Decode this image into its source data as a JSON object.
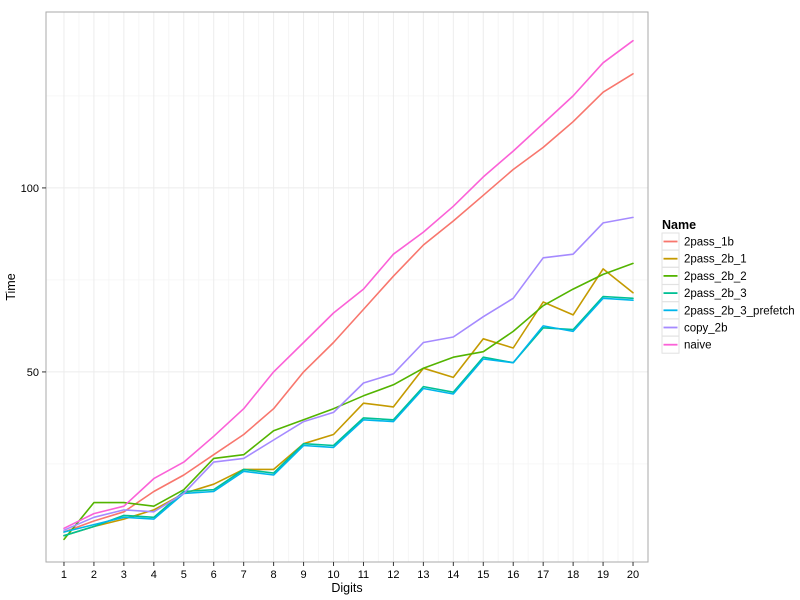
{
  "figure": {
    "background": "#ffffff",
    "panel_fill": "#ffffff",
    "panel_border": "#aaaaaa",
    "grid_major_color": "#ececec",
    "grid_minor_color": "#f6f6f6",
    "tick_color": "#333333",
    "text_color": "#000000",
    "legend_key_fill": "#ffffff",
    "legend_key_border": "#e2e2e2"
  },
  "chart_data": {
    "type": "line",
    "title": "",
    "xlabel": "Digits",
    "ylabel": "Time",
    "legend_title": "Name",
    "legend_position": "right",
    "grid": true,
    "xlim": [
      0.4,
      20.5
    ],
    "ylim": [
      -1.65,
      147.8
    ],
    "xticks": [
      1,
      2,
      3,
      4,
      5,
      6,
      7,
      8,
      9,
      10,
      11,
      12,
      13,
      14,
      15,
      16,
      17,
      18,
      19,
      20
    ],
    "yticks": [
      50,
      100
    ],
    "yticks_minor": [
      25,
      75,
      125
    ],
    "x": [
      1,
      2,
      3,
      4,
      5,
      6,
      7,
      8,
      9,
      10,
      11,
      12,
      13,
      14,
      15,
      16,
      17,
      18,
      19,
      20
    ],
    "series": [
      {
        "name": "2pass_1b",
        "color": "#F8766D",
        "values": [
          6.5,
          9.5,
          12,
          17.5,
          22,
          27.5,
          33,
          40,
          50,
          58,
          67,
          76,
          84.5,
          91,
          98,
          105,
          111,
          118,
          126,
          131
        ]
      },
      {
        "name": "2pass_2b_1",
        "color": "#C49A00",
        "values": [
          5.5,
          8,
          10,
          12.5,
          17,
          19.5,
          23.5,
          23.5,
          30.5,
          33,
          41.5,
          40.5,
          51,
          48.5,
          59,
          56.5,
          69,
          65.5,
          78,
          71.5
        ]
      },
      {
        "name": "2pass_2b_2",
        "color": "#53B400",
        "values": [
          4.5,
          14.5,
          14.5,
          13.5,
          18,
          26.5,
          27.5,
          34,
          37,
          40,
          43.5,
          46.5,
          51,
          54,
          55.5,
          61,
          68,
          72.5,
          76.5,
          79.5
        ]
      },
      {
        "name": "2pass_2b_3",
        "color": "#00C094",
        "values": [
          5.5,
          8,
          11,
          10.5,
          17.5,
          18,
          23.5,
          22.5,
          30.5,
          30,
          37.5,
          37,
          46,
          44.5,
          54,
          52.5,
          62,
          61.5,
          70.5,
          70
        ]
      },
      {
        "name": "2pass_2b_3_prefetch",
        "color": "#00B6EB",
        "values": [
          6.5,
          8.5,
          10.5,
          10,
          17,
          17.5,
          23,
          22,
          30,
          29.5,
          37,
          36.5,
          45.5,
          44,
          53.5,
          52.5,
          62.5,
          61,
          70,
          69.5
        ]
      },
      {
        "name": "copy_2b",
        "color": "#A58AFF",
        "values": [
          7,
          10.5,
          12.5,
          12,
          17,
          25.5,
          26.5,
          31.5,
          36.5,
          39,
          47,
          49.5,
          58,
          59.5,
          65,
          70,
          81,
          82,
          90.5,
          92
        ]
      },
      {
        "name": "naive",
        "color": "#FB61D7",
        "values": [
          7.5,
          11.5,
          13.5,
          21,
          25.5,
          32.5,
          40,
          50,
          58,
          66,
          72.5,
          82,
          88,
          95,
          103,
          110,
          117.5,
          125,
          134,
          140
        ]
      }
    ]
  }
}
